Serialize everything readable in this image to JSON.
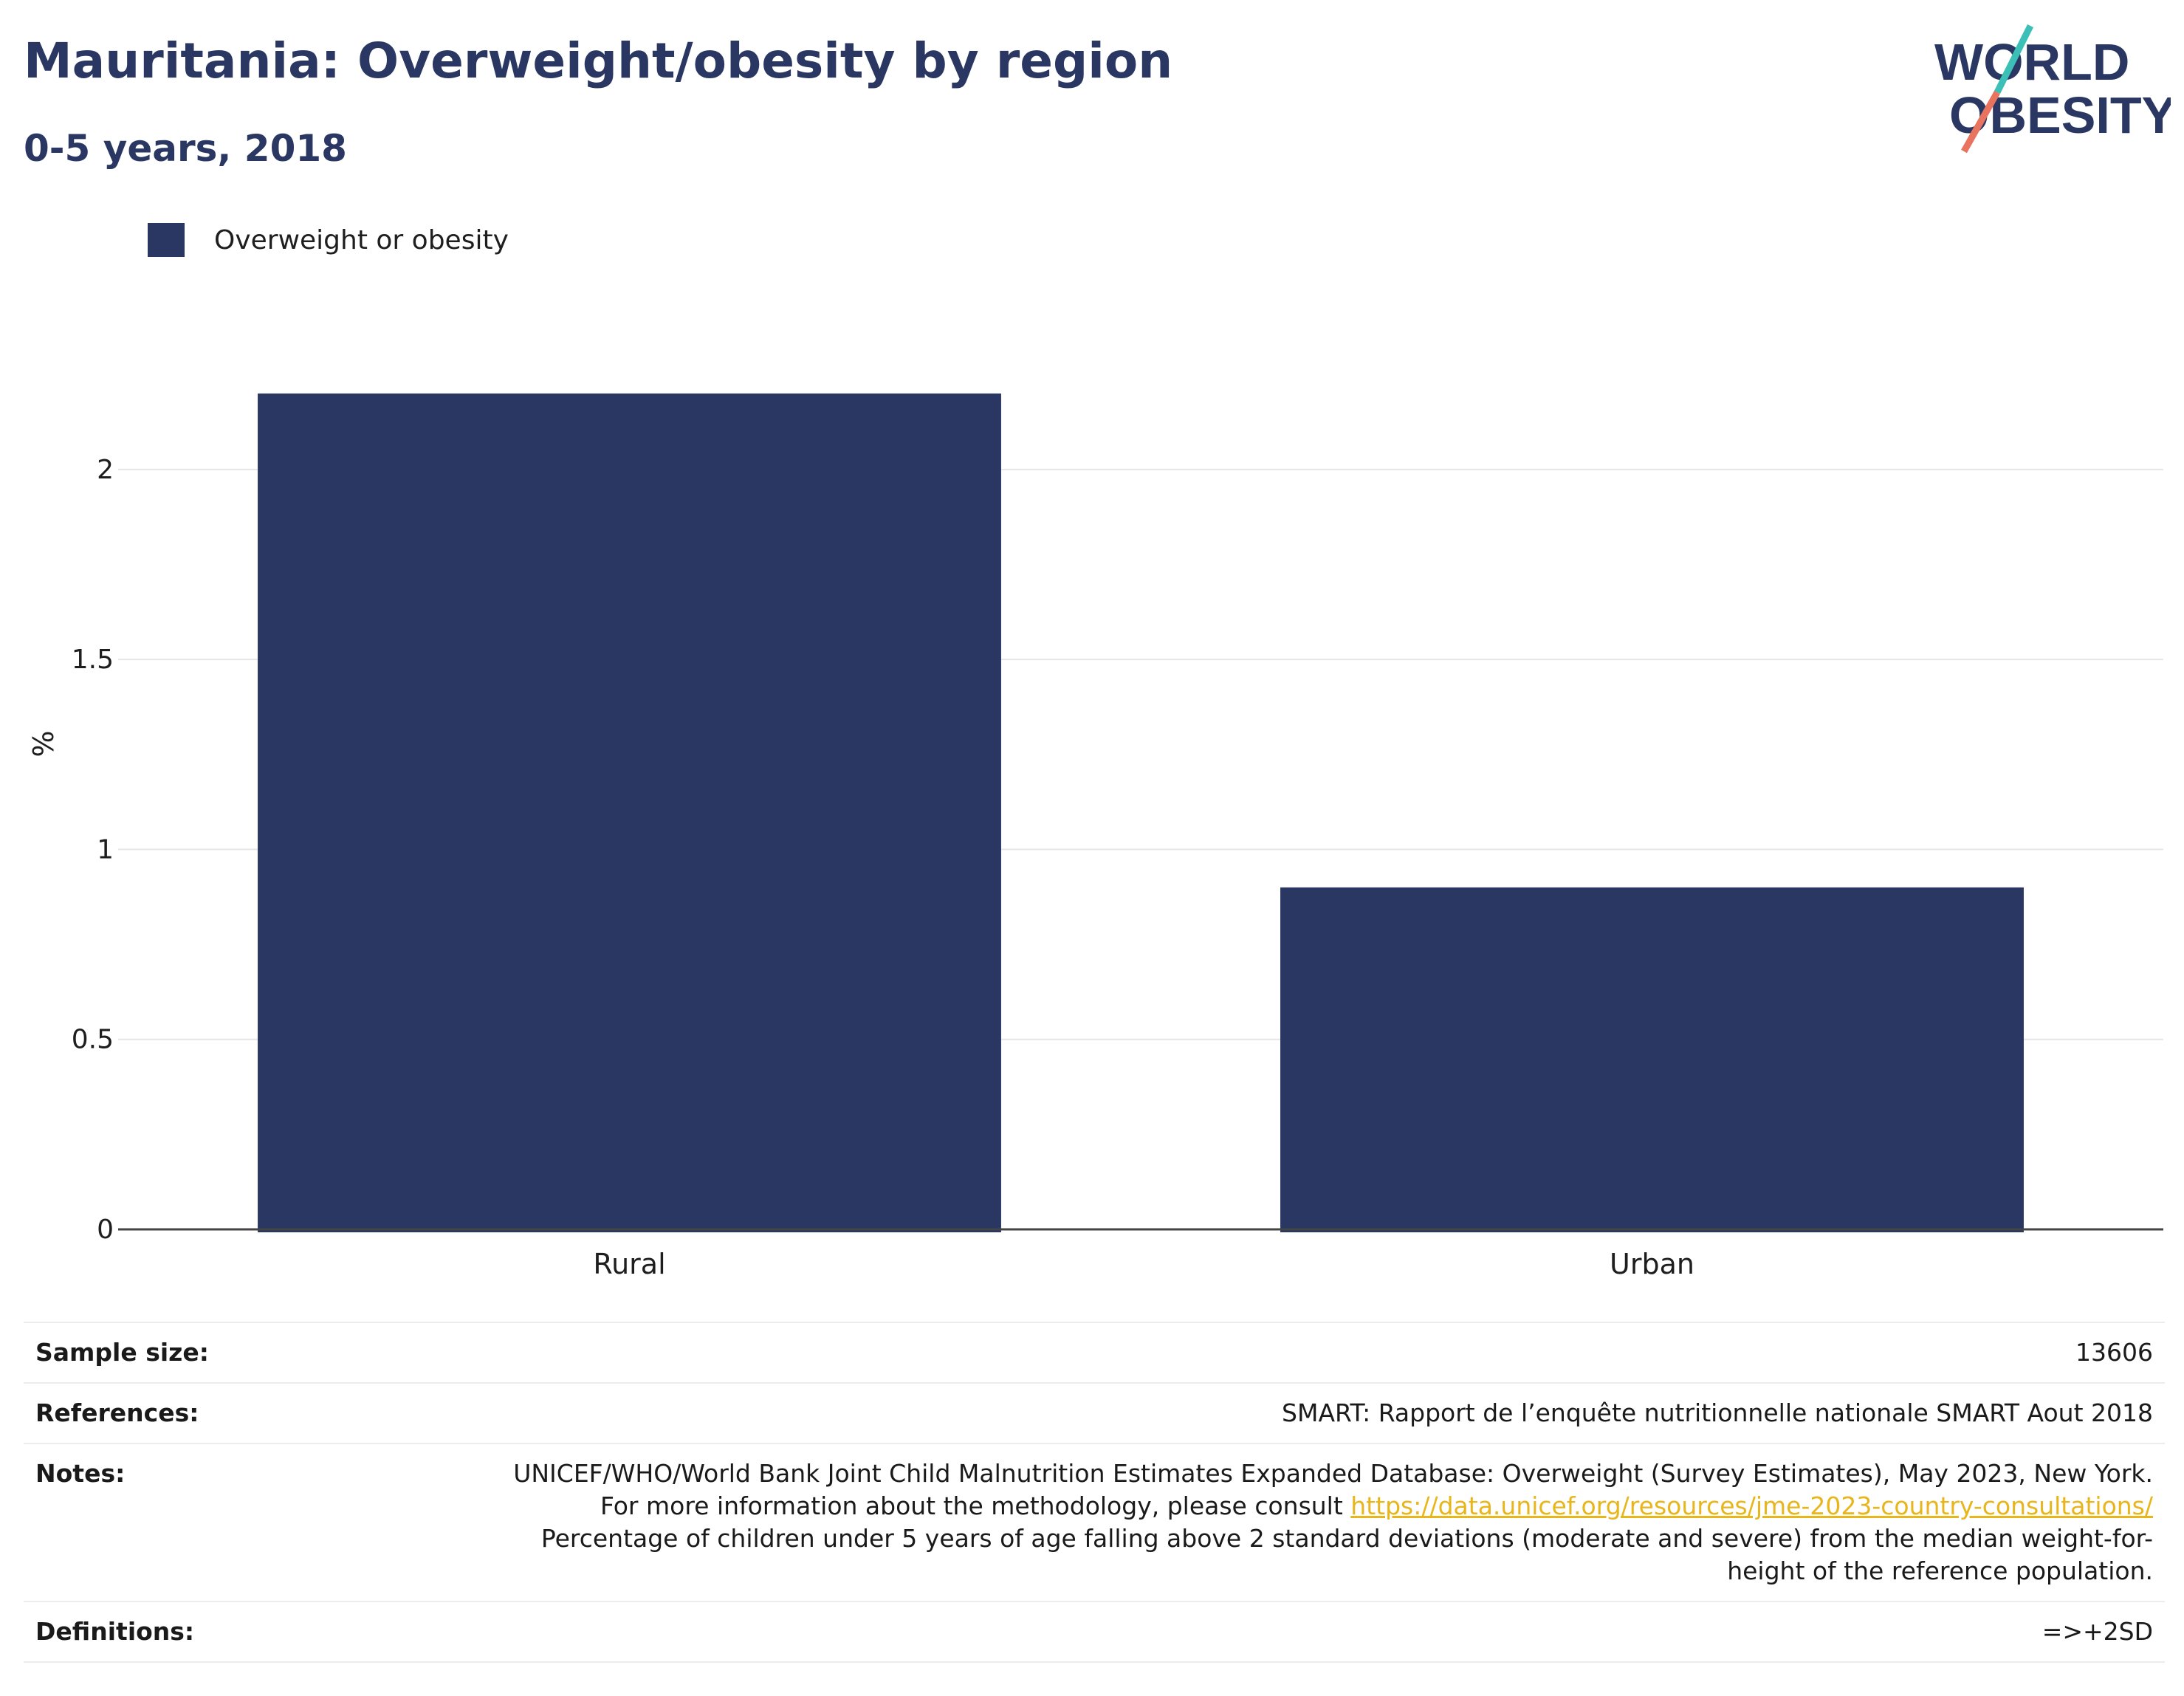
{
  "header": {
    "title": "Mauritania: Overweight/obesity by region",
    "subtitle": "0-5 years, 2018"
  },
  "logo": {
    "line1": "WORLD",
    "line2": "OBESITY",
    "colors": {
      "text": "#2a3762",
      "slash_top": "#3bbfb6",
      "slash_bottom": "#e8735e"
    }
  },
  "chart_data": {
    "type": "bar",
    "categories": [
      "Rural",
      "Urban"
    ],
    "series": [
      {
        "name": "Overweight or obesity",
        "values": [
          2.2,
          0.9
        ],
        "color": "#2a3762"
      }
    ],
    "ylabel": "%",
    "xlabel": "",
    "ylim": [
      0,
      2.4
    ],
    "yticks": [
      0,
      0.5,
      1,
      1.5,
      2
    ],
    "ytick_labels": [
      "0",
      "0.5",
      "1",
      "1.5",
      "2"
    ],
    "grid": true,
    "legend_position": "top-left"
  },
  "notes": {
    "sample_size_label": "Sample size:",
    "sample_size_value": "13606",
    "references_label": "References:",
    "references_value": "SMART: Rapport de l’enquête nutritionnelle nationale SMART Aout 2018",
    "notes_label": "Notes:",
    "notes_text_1": "UNICEF/WHO/World Bank Joint Child Malnutrition Estimates Expanded Database: Overweight (Survey Estimates), May 2023, New York. For more information about the methodology, please consult ",
    "notes_link": "https://data.unicef.org/resources/jme-2023-country-consultations/",
    "notes_text_2": "Percentage of children under 5 years of age falling above 2 standard deviations (moderate and severe) from the median weight-for-height of the reference population.",
    "definitions_label": "Definitions:",
    "definitions_value": "=>+2SD"
  }
}
